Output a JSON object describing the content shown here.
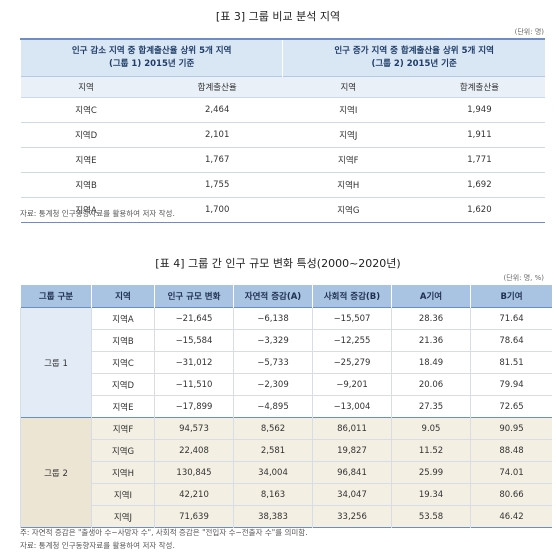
{
  "table3": {
    "title": "[표 3] 그룹 비교 분석 지역",
    "unit": "(단위: 명)",
    "groups": [
      {
        "header": [
          "인구 감소 지역 중 합계출산율 상위 5개 지역",
          "(그룹 1) 2015년 기준"
        ]
      },
      {
        "header": [
          "인구 증가 지역 중 합계출산율 상위 5개 지역",
          "(그룹 2) 2015년 기준"
        ]
      }
    ],
    "columns": [
      "지역",
      "합계출산율",
      "지역",
      "합계출산율"
    ],
    "rows": [
      [
        "지역C",
        "2,464",
        "지역I",
        "1,949"
      ],
      [
        "지역D",
        "2,101",
        "지역J",
        "1,911"
      ],
      [
        "지역E",
        "1,767",
        "지역F",
        "1,771"
      ],
      [
        "지역B",
        "1,755",
        "지역H",
        "1,692"
      ],
      [
        "지역A",
        "1,700",
        "지역G",
        "1,620"
      ]
    ],
    "source": "자료: 통계청 인구동향자료를 활용하여 저자 작성."
  },
  "table4": {
    "title": "[표 4] 그룹 간 인구 규모 변화 특성(2000~2020년)",
    "unit": "(단위: 명, %)",
    "columns": [
      "그룹 구분",
      "지역",
      "인구 규모 변화",
      "자연적 증감(A)",
      "사회적 증감(B)",
      "A기여",
      "B기여"
    ],
    "groups": [
      {
        "label": "그룹 1",
        "rows": [
          [
            "지역A",
            "−21,645",
            "−6,138",
            "−15,507",
            "28.36",
            "71.64"
          ],
          [
            "지역B",
            "−15,584",
            "−3,329",
            "−12,255",
            "21.36",
            "78.64"
          ],
          [
            "지역C",
            "−31,012",
            "−5,733",
            "−25,279",
            "18.49",
            "81.51"
          ],
          [
            "지역D",
            "−11,510",
            "−2,309",
            "−9,201",
            "20.06",
            "79.94"
          ],
          [
            "지역E",
            "−17,899",
            "−4,895",
            "−13,004",
            "27.35",
            "72.65"
          ]
        ]
      },
      {
        "label": "그룹 2",
        "rows": [
          [
            "지역F",
            "94,573",
            "8,562",
            "86,011",
            "9.05",
            "90.95"
          ],
          [
            "지역G",
            "22,408",
            "2,581",
            "19,827",
            "11.52",
            "88.48"
          ],
          [
            "지역H",
            "130,845",
            "34,004",
            "96,841",
            "25.99",
            "74.01"
          ],
          [
            "지역I",
            "42,210",
            "8,163",
            "34,047",
            "19.34",
            "80.66"
          ],
          [
            "지역J",
            "71,639",
            "38,383",
            "33,256",
            "53.58",
            "46.42"
          ]
        ]
      }
    ],
    "notes": [
      "주: 자연적 증감은 \"출생아 수−사망자 수\", 사회적 증감은 \"전입자 수−전출자 수\"를 의미함.",
      "자료: 통계청 인구동향자료를 활용하여 저자 작성."
    ]
  }
}
